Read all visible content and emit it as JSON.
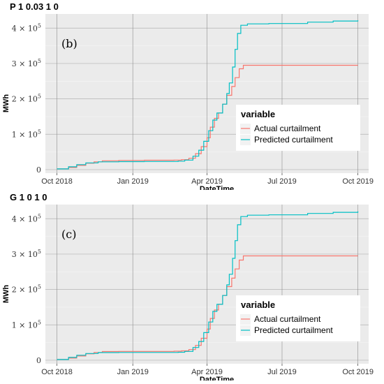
{
  "chart_data": [
    {
      "type": "line",
      "title": "P 1 0.03 1 0",
      "panel_tag": "(b)",
      "xlabel": "DateTime",
      "ylabel": "MWh",
      "x_ticks": [
        "Oct 2018",
        "Jan 2019",
        "Apr 2019",
        "Jul 2019",
        "Oct 2019"
      ],
      "y_ticks": [
        {
          "base": "0",
          "exp": ""
        },
        {
          "base": "1 × 10",
          "exp": "5"
        },
        {
          "base": "2 × 10",
          "exp": "5"
        },
        {
          "base": "3 × 10",
          "exp": "5"
        },
        {
          "base": "4 × 10",
          "exp": "5"
        }
      ],
      "xlim": [
        "2018-09-17",
        "2019-10-14"
      ],
      "ylim": [
        -10000,
        440000
      ],
      "grid": true,
      "legend": {
        "title": "variable",
        "position": "right"
      },
      "series": [
        {
          "name": "Actual curtailment",
          "color": "#F8766D",
          "points": [
            [
              "2018-10-01",
              2000
            ],
            [
              "2018-10-15",
              6000
            ],
            [
              "2018-10-25",
              12000
            ],
            [
              "2018-11-05",
              18000
            ],
            [
              "2018-11-15",
              22000
            ],
            [
              "2018-11-25",
              25000
            ],
            [
              "2018-12-15",
              26000
            ],
            [
              "2019-01-15",
              26500
            ],
            [
              "2019-02-20",
              27000
            ],
            [
              "2019-03-01",
              28000
            ],
            [
              "2019-03-10",
              32000
            ],
            [
              "2019-03-18",
              45000
            ],
            [
              "2019-03-25",
              65000
            ],
            [
              "2019-04-01",
              90000
            ],
            [
              "2019-04-05",
              120000
            ],
            [
              "2019-04-10",
              145000
            ],
            [
              "2019-04-15",
              160000
            ],
            [
              "2019-04-20",
              185000
            ],
            [
              "2019-04-25",
              210000
            ],
            [
              "2019-05-01",
              235000
            ],
            [
              "2019-05-05",
              260000
            ],
            [
              "2019-05-10",
              285000
            ],
            [
              "2019-05-15",
              295000
            ],
            [
              "2019-10-01",
              295000
            ]
          ]
        },
        {
          "name": "Predicted curtailment",
          "color": "#00BFC4",
          "points": [
            [
              "2018-10-01",
              2000
            ],
            [
              "2018-10-15",
              8000
            ],
            [
              "2018-10-25",
              14000
            ],
            [
              "2018-11-05",
              19000
            ],
            [
              "2018-11-20",
              22000
            ],
            [
              "2018-12-15",
              22500
            ],
            [
              "2019-01-15",
              23000
            ],
            [
              "2019-02-25",
              24000
            ],
            [
              "2019-03-05",
              27000
            ],
            [
              "2019-03-15",
              38000
            ],
            [
              "2019-03-22",
              55000
            ],
            [
              "2019-03-28",
              80000
            ],
            [
              "2019-04-03",
              110000
            ],
            [
              "2019-04-08",
              140000
            ],
            [
              "2019-04-13",
              160000
            ],
            [
              "2019-04-20",
              185000
            ],
            [
              "2019-04-25",
              215000
            ],
            [
              "2019-04-28",
              245000
            ],
            [
              "2019-05-02",
              290000
            ],
            [
              "2019-05-05",
              340000
            ],
            [
              "2019-05-08",
              385000
            ],
            [
              "2019-05-12",
              408000
            ],
            [
              "2019-05-20",
              412000
            ],
            [
              "2019-06-15",
              413000
            ],
            [
              "2019-08-01",
              417000
            ],
            [
              "2019-09-01",
              420000
            ],
            [
              "2019-10-01",
              422000
            ]
          ]
        }
      ]
    },
    {
      "type": "line",
      "title": "G 1 0 1 0",
      "panel_tag": "(c)",
      "xlabel": "DateTime",
      "ylabel": "MWh",
      "x_ticks": [
        "Oct 2018",
        "Jan 2019",
        "Apr 2019",
        "Jul 2019",
        "Oct 2019"
      ],
      "y_ticks": [
        {
          "base": "0",
          "exp": ""
        },
        {
          "base": "1 × 10",
          "exp": "5"
        },
        {
          "base": "2 × 10",
          "exp": "5"
        },
        {
          "base": "3 × 10",
          "exp": "5"
        },
        {
          "base": "4 × 10",
          "exp": "5"
        }
      ],
      "xlim": [
        "2018-09-17",
        "2019-10-14"
      ],
      "ylim": [
        -10000,
        440000
      ],
      "grid": true,
      "legend": {
        "title": "variable",
        "position": "right"
      },
      "series": [
        {
          "name": "Actual curtailment",
          "color": "#F8766D",
          "points": [
            [
              "2018-10-01",
              2000
            ],
            [
              "2018-10-15",
              6000
            ],
            [
              "2018-10-25",
              12000
            ],
            [
              "2018-11-05",
              18000
            ],
            [
              "2018-11-15",
              22000
            ],
            [
              "2018-11-25",
              24500
            ],
            [
              "2018-12-15",
              25000
            ],
            [
              "2019-01-15",
              25000
            ],
            [
              "2019-02-20",
              25500
            ],
            [
              "2019-03-01",
              26500
            ],
            [
              "2019-03-10",
              30000
            ],
            [
              "2019-03-18",
              42000
            ],
            [
              "2019-03-25",
              62000
            ],
            [
              "2019-04-01",
              88000
            ],
            [
              "2019-04-05",
              118000
            ],
            [
              "2019-04-10",
              142000
            ],
            [
              "2019-04-15",
              158000
            ],
            [
              "2019-04-20",
              183000
            ],
            [
              "2019-04-25",
              208000
            ],
            [
              "2019-05-01",
              232000
            ],
            [
              "2019-05-05",
              258000
            ],
            [
              "2019-05-10",
              283000
            ],
            [
              "2019-05-15",
              295000
            ],
            [
              "2019-10-01",
              295000
            ]
          ]
        },
        {
          "name": "Predicted curtailment",
          "color": "#00BFC4",
          "points": [
            [
              "2018-10-01",
              2000
            ],
            [
              "2018-10-15",
              8000
            ],
            [
              "2018-10-25",
              14000
            ],
            [
              "2018-11-05",
              19000
            ],
            [
              "2018-11-20",
              21500
            ],
            [
              "2018-12-15",
              22000
            ],
            [
              "2019-01-15",
              22000
            ],
            [
              "2019-02-25",
              22500
            ],
            [
              "2019-03-05",
              25000
            ],
            [
              "2019-03-15",
              36000
            ],
            [
              "2019-03-22",
              53000
            ],
            [
              "2019-03-28",
              78000
            ],
            [
              "2019-04-03",
              108000
            ],
            [
              "2019-04-08",
              138000
            ],
            [
              "2019-04-13",
              158000
            ],
            [
              "2019-04-20",
              183000
            ],
            [
              "2019-04-25",
              213000
            ],
            [
              "2019-04-28",
              243000
            ],
            [
              "2019-05-02",
              288000
            ],
            [
              "2019-05-05",
              338000
            ],
            [
              "2019-05-08",
              383000
            ],
            [
              "2019-05-12",
              406000
            ],
            [
              "2019-05-20",
              410000
            ],
            [
              "2019-06-15",
              411000
            ],
            [
              "2019-08-01",
              415000
            ],
            [
              "2019-09-01",
              418000
            ],
            [
              "2019-10-01",
              421000
            ]
          ]
        }
      ]
    }
  ]
}
